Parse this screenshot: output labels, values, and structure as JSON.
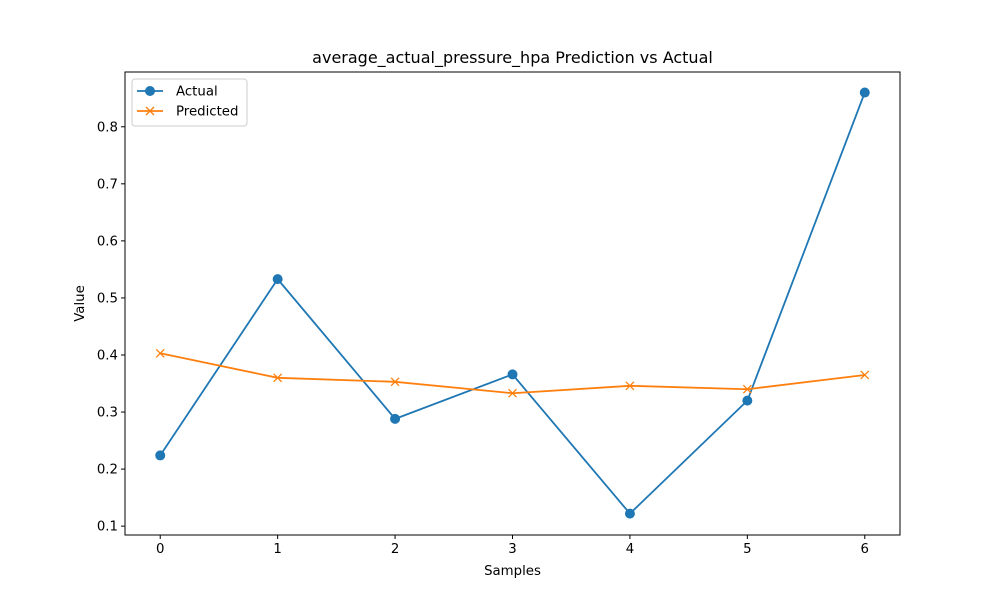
{
  "chart_data": {
    "type": "line",
    "title": "average_actual_pressure_hpa Prediction vs Actual",
    "xlabel": "Samples",
    "ylabel": "Value",
    "x": [
      0,
      1,
      2,
      3,
      4,
      5,
      6
    ],
    "xticks": [
      "0",
      "1",
      "2",
      "3",
      "4",
      "5",
      "6"
    ],
    "yticks": [
      "0.1",
      "0.2",
      "0.3",
      "0.4",
      "0.5",
      "0.6",
      "0.7",
      "0.8"
    ],
    "xlim": [
      -0.3,
      6.3
    ],
    "ylim": [
      0.0845,
      0.896
    ],
    "grid": false,
    "legend_position": "upper-left",
    "series": [
      {
        "name": "Actual",
        "marker": "circle",
        "color": "#1f77b4",
        "values": [
          0.224,
          0.533,
          0.288,
          0.366,
          0.122,
          0.32,
          0.86
        ]
      },
      {
        "name": "Predicted",
        "marker": "x",
        "color": "#ff7f0e",
        "values": [
          0.403,
          0.36,
          0.353,
          0.333,
          0.346,
          0.34,
          0.365
        ]
      }
    ]
  }
}
